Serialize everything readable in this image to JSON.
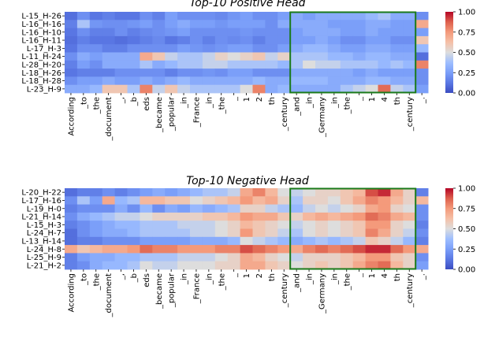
{
  "chart_data": [
    {
      "type": "heatmap",
      "title": "Top-10 Positive Head",
      "xlabel": "",
      "ylabel": "",
      "x_tokens": [
        "According",
        "_to",
        "_the",
        "_document",
        "_,",
        "_b",
        "eds",
        "_became",
        "_popular",
        "_in",
        "_France",
        "_in",
        "_the",
        "_",
        "1",
        "2",
        "th",
        "_century",
        "_and",
        "_in",
        "_Germany",
        "_in",
        "_the",
        "_",
        "1",
        "4",
        "th",
        "_century",
        "_."
      ],
      "y_labels": [
        "L-15_H-26",
        "L-16_H-16",
        "L-16_H-10",
        "L-16_H-11",
        "L-17_H-3",
        "L-11_H-24",
        "L-28_H-20",
        "L-18_H-26",
        "L-18_H-28",
        "L-23_H-9"
      ],
      "highlight_box": {
        "from_token": "_and",
        "to_token": "_century",
        "color": "#1a7a1a"
      },
      "colorbar": {
        "colormap": "coolwarm",
        "min": 0.0,
        "max": 1.0,
        "ticks": [
          "0.00",
          "0.25",
          "0.50",
          "0.75",
          "1.00"
        ]
      },
      "values": [
        [
          0.1,
          0.2,
          0.12,
          0.15,
          0.12,
          0.12,
          0.2,
          0.15,
          0.25,
          0.2,
          0.2,
          0.2,
          0.18,
          0.22,
          0.25,
          0.2,
          0.2,
          0.25,
          0.3,
          0.25,
          0.3,
          0.3,
          0.3,
          0.3,
          0.35,
          0.4,
          0.3,
          0.3,
          0.2
        ],
        [
          0.15,
          0.4,
          0.22,
          0.2,
          0.2,
          0.22,
          0.25,
          0.2,
          0.25,
          0.3,
          0.25,
          0.25,
          0.22,
          0.25,
          0.25,
          0.25,
          0.2,
          0.3,
          0.3,
          0.3,
          0.3,
          0.25,
          0.25,
          0.25,
          0.3,
          0.3,
          0.25,
          0.25,
          0.7
        ],
        [
          0.12,
          0.2,
          0.15,
          0.15,
          0.2,
          0.15,
          0.18,
          0.2,
          0.22,
          0.25,
          0.2,
          0.2,
          0.2,
          0.2,
          0.22,
          0.2,
          0.2,
          0.2,
          0.25,
          0.3,
          0.3,
          0.3,
          0.25,
          0.25,
          0.3,
          0.25,
          0.25,
          0.25,
          0.25
        ],
        [
          0.1,
          0.15,
          0.12,
          0.12,
          0.1,
          0.12,
          0.15,
          0.18,
          0.12,
          0.15,
          0.2,
          0.15,
          0.2,
          0.18,
          0.2,
          0.15,
          0.2,
          0.2,
          0.25,
          0.25,
          0.3,
          0.25,
          0.2,
          0.2,
          0.25,
          0.25,
          0.2,
          0.2,
          0.6
        ],
        [
          0.12,
          0.2,
          0.2,
          0.15,
          0.15,
          0.2,
          0.2,
          0.2,
          0.2,
          0.25,
          0.22,
          0.2,
          0.22,
          0.25,
          0.25,
          0.2,
          0.2,
          0.25,
          0.3,
          0.35,
          0.35,
          0.3,
          0.25,
          0.25,
          0.3,
          0.3,
          0.25,
          0.25,
          0.35
        ],
        [
          0.2,
          0.3,
          0.25,
          0.3,
          0.3,
          0.3,
          0.7,
          0.6,
          0.45,
          0.4,
          0.4,
          0.45,
          0.55,
          0.5,
          0.55,
          0.6,
          0.45,
          0.55,
          0.4,
          0.4,
          0.4,
          0.35,
          0.35,
          0.3,
          0.35,
          0.35,
          0.3,
          0.3,
          0.1
        ],
        [
          0.15,
          0.25,
          0.2,
          0.3,
          0.3,
          0.3,
          0.4,
          0.3,
          0.35,
          0.4,
          0.4,
          0.45,
          0.45,
          0.4,
          0.4,
          0.4,
          0.4,
          0.35,
          0.4,
          0.5,
          0.45,
          0.45,
          0.4,
          0.4,
          0.4,
          0.35,
          0.4,
          0.35,
          0.8
        ],
        [
          0.12,
          0.15,
          0.15,
          0.15,
          0.2,
          0.2,
          0.2,
          0.2,
          0.15,
          0.2,
          0.2,
          0.22,
          0.2,
          0.25,
          0.25,
          0.2,
          0.2,
          0.2,
          0.3,
          0.3,
          0.3,
          0.3,
          0.3,
          0.25,
          0.3,
          0.25,
          0.25,
          0.25,
          0.2
        ],
        [
          0.2,
          0.25,
          0.25,
          0.3,
          0.25,
          0.25,
          0.3,
          0.25,
          0.3,
          0.35,
          0.3,
          0.3,
          0.3,
          0.3,
          0.3,
          0.35,
          0.3,
          0.3,
          0.35,
          0.35,
          0.35,
          0.3,
          0.3,
          0.3,
          0.35,
          0.35,
          0.3,
          0.3,
          0.2
        ],
        [
          0.3,
          0.3,
          0.35,
          0.6,
          0.6,
          0.4,
          0.8,
          0.45,
          0.6,
          0.45,
          0.4,
          0.4,
          0.4,
          0.4,
          0.5,
          0.8,
          0.3,
          0.35,
          0.3,
          0.3,
          0.3,
          0.3,
          0.4,
          0.45,
          0.5,
          0.85,
          0.45,
          0.4,
          0.25
        ]
      ]
    },
    {
      "type": "heatmap",
      "title": "Top-10 Negative Head",
      "xlabel": "",
      "ylabel": "",
      "x_tokens": [
        "According",
        "_to",
        "_the",
        "_document",
        "_,",
        "_b",
        "eds",
        "_became",
        "_popular",
        "_in",
        "_France",
        "_in",
        "_the",
        "_",
        "1",
        "2",
        "th",
        "_century",
        "_and",
        "_in",
        "_Germany",
        "_in",
        "_the",
        "_",
        "1",
        "4",
        "th",
        "_century",
        "_."
      ],
      "y_labels": [
        "L-20_H-22",
        "L-17_H-16",
        "L-19_H-0",
        "L-21_H-14",
        "L-15_H-3",
        "L-24_H-7",
        "L-13_H-14",
        "L-24_H-8",
        "L-25_H-9",
        "L-21_H-2"
      ],
      "highlight_box": {
        "from_token": "_and",
        "to_token": "_century",
        "color": "#1a7a1a"
      },
      "colorbar": {
        "colormap": "coolwarm",
        "min": 0.0,
        "max": 1.0,
        "ticks": [
          "0.00",
          "0.25",
          "0.50",
          "0.75",
          "1.00"
        ]
      },
      "values": [
        [
          0.1,
          0.15,
          0.15,
          0.2,
          0.15,
          0.2,
          0.25,
          0.3,
          0.25,
          0.3,
          0.35,
          0.4,
          0.4,
          0.45,
          0.7,
          0.8,
          0.65,
          0.5,
          0.45,
          0.5,
          0.55,
          0.55,
          0.6,
          0.65,
          0.9,
          0.95,
          0.7,
          0.55,
          0.15
        ],
        [
          0.2,
          0.4,
          0.25,
          0.7,
          0.35,
          0.4,
          0.65,
          0.65,
          0.6,
          0.6,
          0.5,
          0.55,
          0.6,
          0.65,
          0.75,
          0.65,
          0.7,
          0.55,
          0.4,
          0.55,
          0.55,
          0.5,
          0.6,
          0.7,
          0.8,
          0.75,
          0.65,
          0.55,
          0.65
        ],
        [
          0.15,
          0.2,
          0.2,
          0.2,
          0.3,
          0.2,
          0.35,
          0.2,
          0.3,
          0.25,
          0.35,
          0.3,
          0.35,
          0.4,
          0.55,
          0.55,
          0.45,
          0.4,
          0.35,
          0.45,
          0.5,
          0.45,
          0.5,
          0.55,
          0.7,
          0.75,
          0.55,
          0.5,
          0.2
        ],
        [
          0.2,
          0.3,
          0.35,
          0.4,
          0.45,
          0.45,
          0.5,
          0.55,
          0.55,
          0.55,
          0.55,
          0.6,
          0.6,
          0.65,
          0.75,
          0.7,
          0.7,
          0.6,
          0.55,
          0.65,
          0.7,
          0.65,
          0.7,
          0.75,
          0.85,
          0.8,
          0.7,
          0.65,
          0.2
        ],
        [
          0.15,
          0.2,
          0.25,
          0.3,
          0.35,
          0.35,
          0.4,
          0.4,
          0.4,
          0.45,
          0.45,
          0.45,
          0.5,
          0.55,
          0.65,
          0.6,
          0.55,
          0.5,
          0.45,
          0.5,
          0.55,
          0.5,
          0.55,
          0.6,
          0.75,
          0.75,
          0.55,
          0.5,
          0.15
        ],
        [
          0.1,
          0.2,
          0.25,
          0.3,
          0.3,
          0.35,
          0.4,
          0.4,
          0.4,
          0.4,
          0.45,
          0.45,
          0.5,
          0.55,
          0.75,
          0.6,
          0.55,
          0.45,
          0.4,
          0.5,
          0.55,
          0.5,
          0.55,
          0.6,
          0.8,
          0.7,
          0.55,
          0.45,
          0.2
        ],
        [
          0.1,
          0.15,
          0.15,
          0.2,
          0.2,
          0.2,
          0.25,
          0.25,
          0.25,
          0.25,
          0.3,
          0.3,
          0.3,
          0.35,
          0.5,
          0.45,
          0.4,
          0.35,
          0.3,
          0.35,
          0.4,
          0.35,
          0.4,
          0.45,
          0.6,
          0.55,
          0.45,
          0.35,
          0.15
        ],
        [
          0.7,
          0.6,
          0.65,
          0.7,
          0.7,
          0.75,
          0.85,
          0.8,
          0.8,
          0.75,
          0.75,
          0.75,
          0.8,
          0.8,
          0.9,
          0.85,
          0.8,
          0.75,
          0.7,
          0.8,
          0.85,
          0.8,
          0.85,
          0.9,
          0.95,
          0.95,
          0.85,
          0.75,
          0.7
        ],
        [
          0.15,
          0.25,
          0.3,
          0.3,
          0.35,
          0.35,
          0.4,
          0.4,
          0.4,
          0.45,
          0.45,
          0.45,
          0.5,
          0.55,
          0.7,
          0.65,
          0.55,
          0.5,
          0.45,
          0.55,
          0.55,
          0.55,
          0.6,
          0.65,
          0.75,
          0.75,
          0.6,
          0.55,
          0.2
        ],
        [
          0.15,
          0.2,
          0.3,
          0.35,
          0.35,
          0.4,
          0.5,
          0.45,
          0.45,
          0.5,
          0.5,
          0.5,
          0.55,
          0.55,
          0.7,
          0.7,
          0.6,
          0.55,
          0.5,
          0.55,
          0.6,
          0.55,
          0.6,
          0.7,
          0.8,
          0.85,
          0.65,
          0.55,
          0.25
        ]
      ]
    }
  ]
}
